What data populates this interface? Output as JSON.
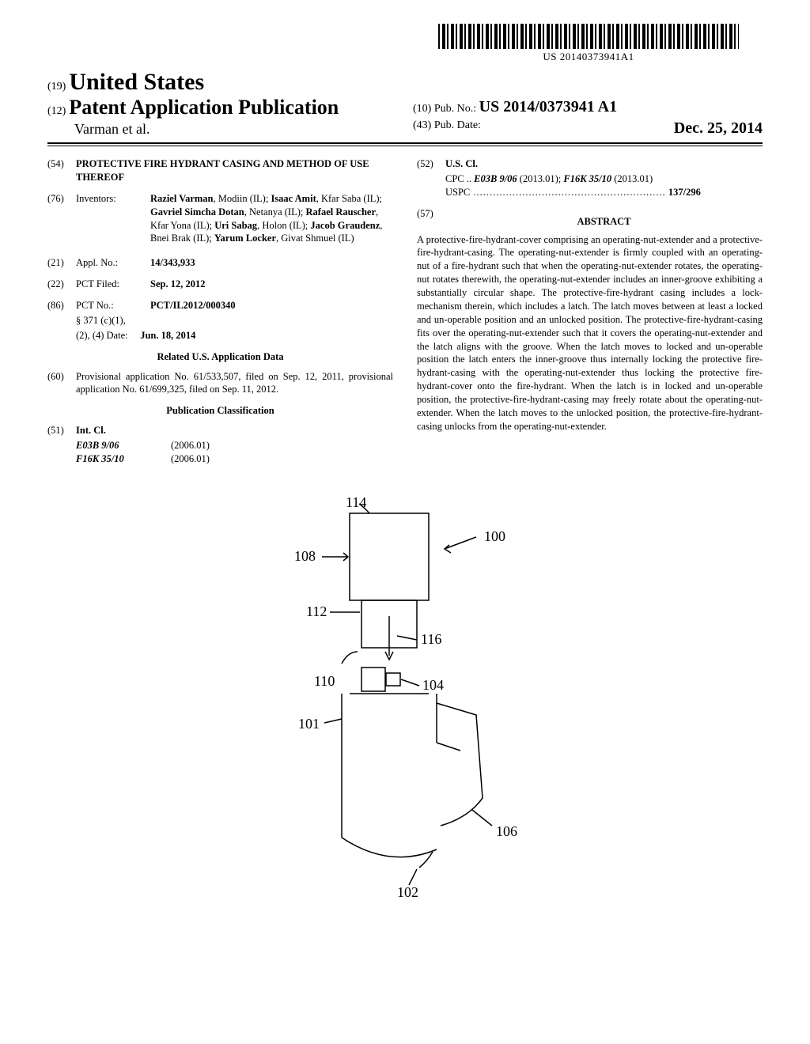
{
  "barcode_text": "US 20140373941A1",
  "header": {
    "code19": "(19)",
    "country": "United States",
    "code12": "(12)",
    "pub_type": "Patent Application Publication",
    "authors": "Varman et al.",
    "code10": "(10)",
    "pub_no_label": "Pub. No.:",
    "pub_no": "US 2014/0373941 A1",
    "code43": "(43)",
    "pub_date_label": "Pub. Date:",
    "pub_date": "Dec. 25, 2014"
  },
  "fields": {
    "f54": {
      "num": "(54)",
      "label": "",
      "value": "PROTECTIVE FIRE HYDRANT CASING AND METHOD OF USE THEREOF"
    },
    "f76": {
      "num": "(76)",
      "label": "Inventors:",
      "value_parts": [
        {
          "name": "Raziel Varman",
          "loc": ", Modiin (IL); "
        },
        {
          "name": "Isaac Amit",
          "loc": ", Kfar Saba (IL); "
        },
        {
          "name": "Gavriel Simcha Dotan",
          "loc": ", Netanya (IL); "
        },
        {
          "name": "Rafael Rauscher",
          "loc": ", Kfar Yona (IL); "
        },
        {
          "name": "Uri Sabag",
          "loc": ", Holon (IL); "
        },
        {
          "name": "Jacob Graudenz",
          "loc": ", Bnei Brak (IL); "
        },
        {
          "name": "Yarum Locker",
          "loc": ", Givat Shmuel (IL)"
        }
      ]
    },
    "f21": {
      "num": "(21)",
      "label": "Appl. No.:",
      "value": "14/343,933"
    },
    "f22": {
      "num": "(22)",
      "label": "PCT Filed:",
      "value": "Sep. 12, 2012"
    },
    "f86": {
      "num": "(86)",
      "label": "PCT No.:",
      "value": "PCT/IL2012/000340",
      "sub1": "§ 371 (c)(1),",
      "sub2_label": "(2), (4) Date:",
      "sub2_value": "Jun. 18, 2014"
    },
    "related_heading": "Related U.S. Application Data",
    "f60": {
      "num": "(60)",
      "value": "Provisional application No. 61/533,507, filed on Sep. 12, 2011, provisional application No. 61/699,325, filed on Sep. 11, 2012."
    },
    "pubclass_heading": "Publication Classification",
    "f51": {
      "num": "(51)",
      "label": "Int. Cl.",
      "rows": [
        {
          "code": "E03B 9/06",
          "year": "(2006.01)"
        },
        {
          "code": "F16K 35/10",
          "year": "(2006.01)"
        }
      ]
    },
    "f52": {
      "num": "(52)",
      "label": "U.S. Cl.",
      "cpc_prefix": "CPC ..",
      "cpc": [
        {
          "code": "E03B 9/06",
          "year": "(2013.01); "
        },
        {
          "code": "F16K 35/10",
          "year": "(2013.01)"
        }
      ],
      "uspc_label": "USPC",
      "uspc_dots": " ...........................................................",
      "uspc_value": " 137/296"
    }
  },
  "abstract": {
    "num": "(57)",
    "heading": "ABSTRACT",
    "text": "A protective-fire-hydrant-cover comprising an operating-nut-extender and a protective-fire-hydrant-casing. The operating-nut-extender is firmly coupled with an operating-nut of a fire-hydrant such that when the operating-nut-extender rotates, the operating-nut rotates therewith, the operating-nut-extender includes an inner-groove exhibiting a substantially circular shape. The protective-fire-hydrant casing includes a lock-mechanism therein, which includes a latch. The latch moves between at least a locked and un-operable position and an unlocked position. The protective-fire-hydrant-casing fits over the operating-nut-extender such that it covers the operating-nut-extender and the latch aligns with the groove. When the latch moves to locked and un-operable position the latch enters the inner-groove thus internally locking the protective fire-hydrant-casing with the operating-nut-extender thus locking the protective fire-hydrant-cover onto the fire-hydrant. When the latch is in locked and un-operable position, the protective-fire-hydrant-casing may freely rotate about the operating-nut-extender. When the latch moves to the unlocked position, the protective-fire-hydrant-casing unlocks from the operating-nut-extender."
  },
  "figure": {
    "labels": {
      "l114": "114",
      "l100": "100",
      "l108": "108",
      "l112": "112",
      "l116": "116",
      "l110": "110",
      "l104": "104",
      "l101": "101",
      "l106": "106",
      "l102": "102"
    }
  }
}
